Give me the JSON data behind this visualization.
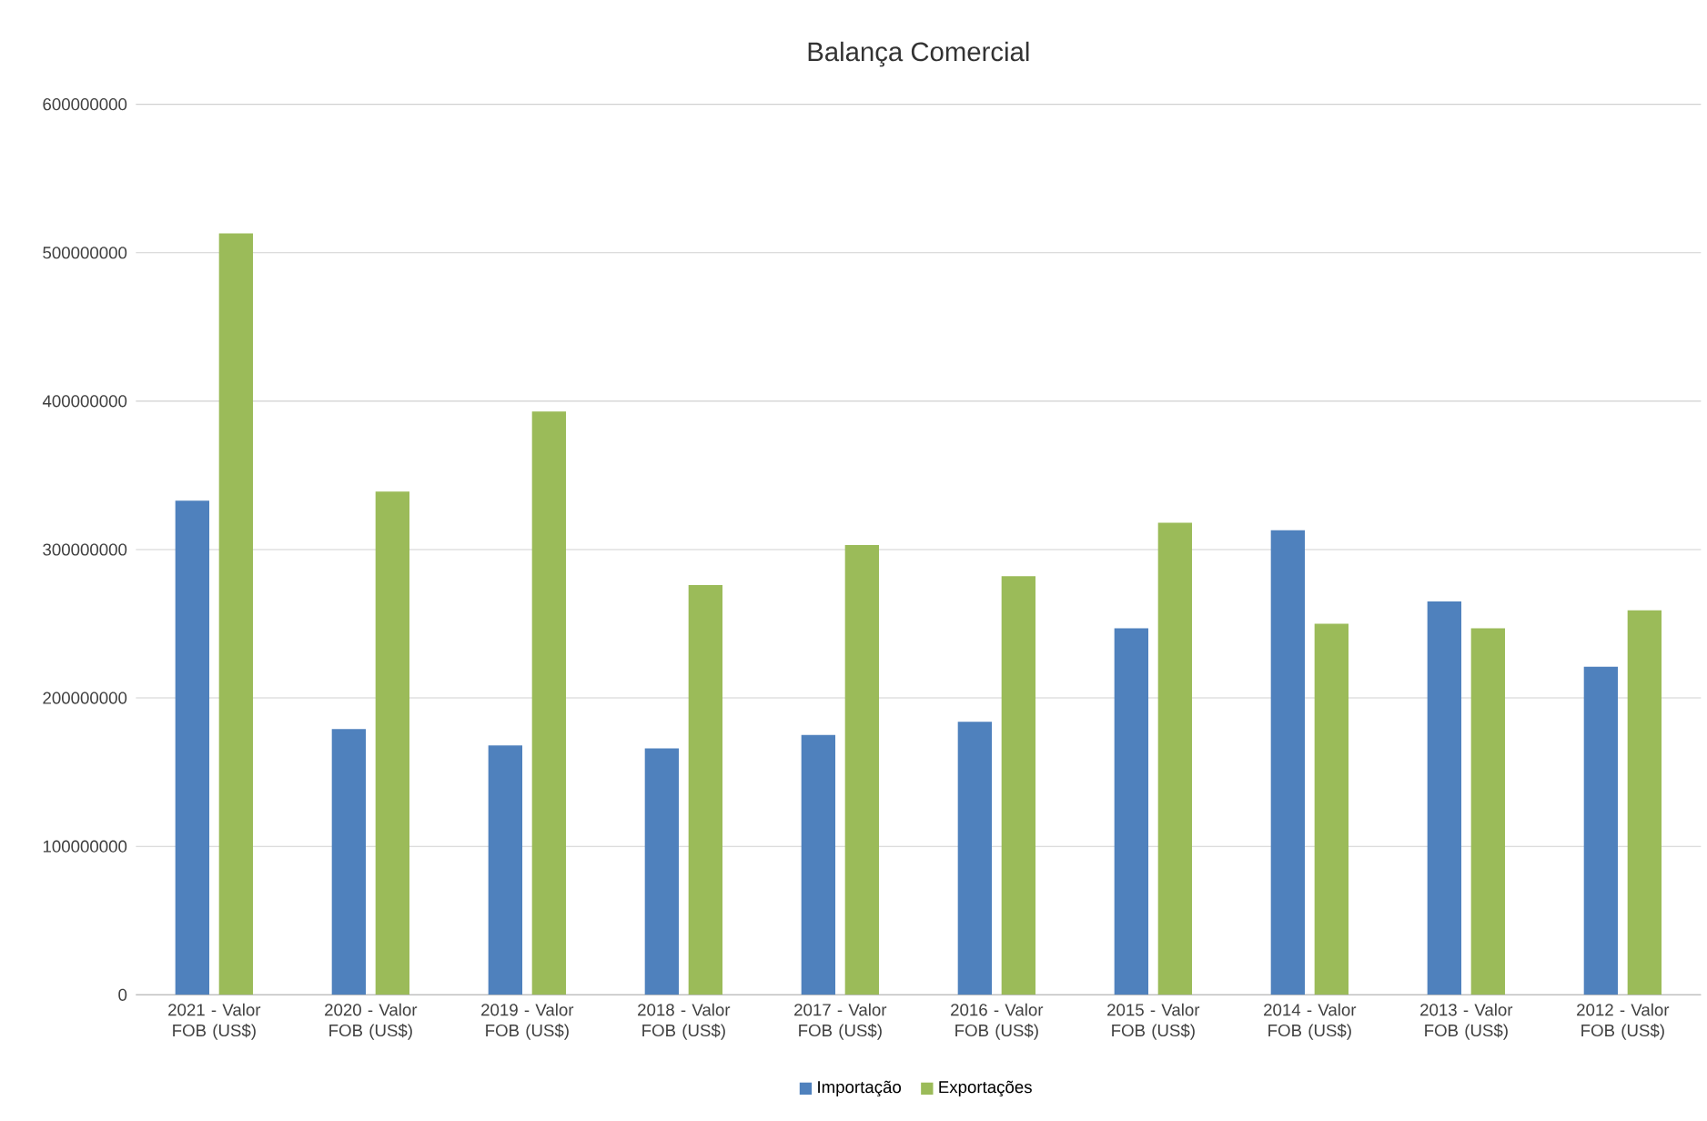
{
  "chart_data": {
    "type": "bar",
    "title": "Balança Comercial",
    "categories": [
      "2021 - Valor FOB (US$)",
      "2020 - Valor FOB (US$)",
      "2019 - Valor FOB (US$)",
      "2018 - Valor FOB (US$)",
      "2017 - Valor FOB (US$)",
      "2016 - Valor FOB (US$)",
      "2015 - Valor FOB (US$)",
      "2014 - Valor FOB (US$)",
      "2013 - Valor FOB (US$)",
      "2012 - Valor FOB (US$)"
    ],
    "series": [
      {
        "name": "Importação",
        "color": "#4f81bd",
        "values": [
          333000000,
          179000000,
          168000000,
          166000000,
          175000000,
          184000000,
          247000000,
          313000000,
          265000000,
          221000000
        ]
      },
      {
        "name": "Exportações",
        "color": "#9bbb59",
        "values": [
          513000000,
          339000000,
          393000000,
          276000000,
          303000000,
          282000000,
          318000000,
          250000000,
          247000000,
          259000000
        ]
      }
    ],
    "ylim": [
      0,
      600000000
    ],
    "yticks": [
      0,
      100000000,
      200000000,
      300000000,
      400000000,
      500000000,
      600000000
    ],
    "grid": "y",
    "legend": "bottom"
  }
}
